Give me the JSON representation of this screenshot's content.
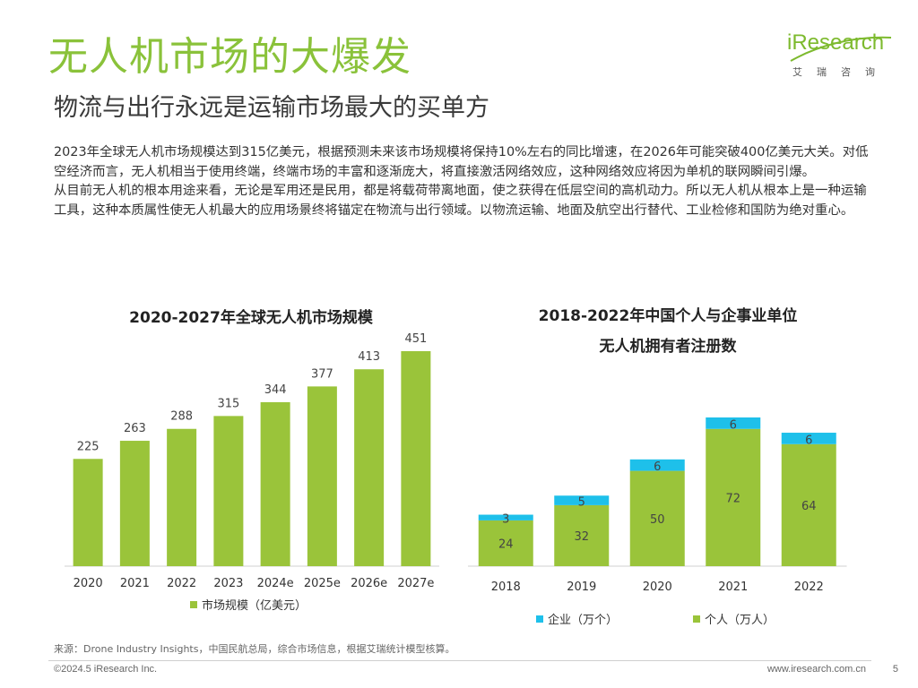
{
  "header": {
    "title": "无人机市场的大爆发",
    "subtitle": "物流与出行永远是运输市场最大的买单方"
  },
  "logo": {
    "brand": "iResearch",
    "chinese": "艾瑞咨询",
    "color": "#7dba2e"
  },
  "body": {
    "paragraph1": "2023年全球无人机市场规模达到315亿美元，根据预测未来该市场规模将保持10%左右的同比增速，在2026年可能突破400亿美元大关。对低空经济而言，无人机相当于使用终端，终端市场的丰富和逐渐庞大，将直接激活网络效应，这种网络效应将因为单机的联网瞬间引爆。",
    "paragraph2": "从目前无人机的根本用途来看，无论是军用还是民用，都是将载荷带离地面，使之获得在低层空间的高机动力。所以无人机从根本上是一种运输工具，这种本质属性使无人机最大的应用场景终将锚定在物流与出行领域。以物流运输、地面及航空出行替代、工业检修和国防为绝对重心。"
  },
  "chart_data": [
    {
      "type": "bar",
      "title": "2020-2027年全球无人机市场规模",
      "categories": [
        "2020",
        "2021",
        "2022",
        "2023",
        "2024e",
        "2025e",
        "2026e",
        "2027e"
      ],
      "series": [
        {
          "name": "市场规模（亿美元）",
          "values": [
            225,
            263,
            288,
            315,
            344,
            377,
            413,
            451
          ],
          "color": "#9ac43a"
        }
      ],
      "ylim": [
        0,
        480
      ],
      "legend": "bottom",
      "grid": false
    },
    {
      "type": "bar",
      "stacked": true,
      "title_line1": "2018-2022年中国个人与企事业单位",
      "title_line2": "无人机拥有者注册数",
      "categories": [
        "2018",
        "2019",
        "2020",
        "2021",
        "2022"
      ],
      "series": [
        {
          "name": "企业（万个）",
          "values": [
            3,
            5,
            6,
            6,
            6
          ],
          "color": "#1ec0ea"
        },
        {
          "name": "个人（万人）",
          "values": [
            24,
            32,
            50,
            72,
            64
          ],
          "color": "#9ac43a"
        }
      ],
      "ylim": [
        0,
        82
      ],
      "legend": "bottom",
      "grid": false
    }
  ],
  "footer": {
    "source": "来源：Drone Industry Insights，中国民航总局，综合市场信息，根据艾瑞统计模型核算。",
    "copyright": "©2024.5 iResearch Inc.",
    "website": "www.iresearch.com.cn",
    "page": "5"
  }
}
